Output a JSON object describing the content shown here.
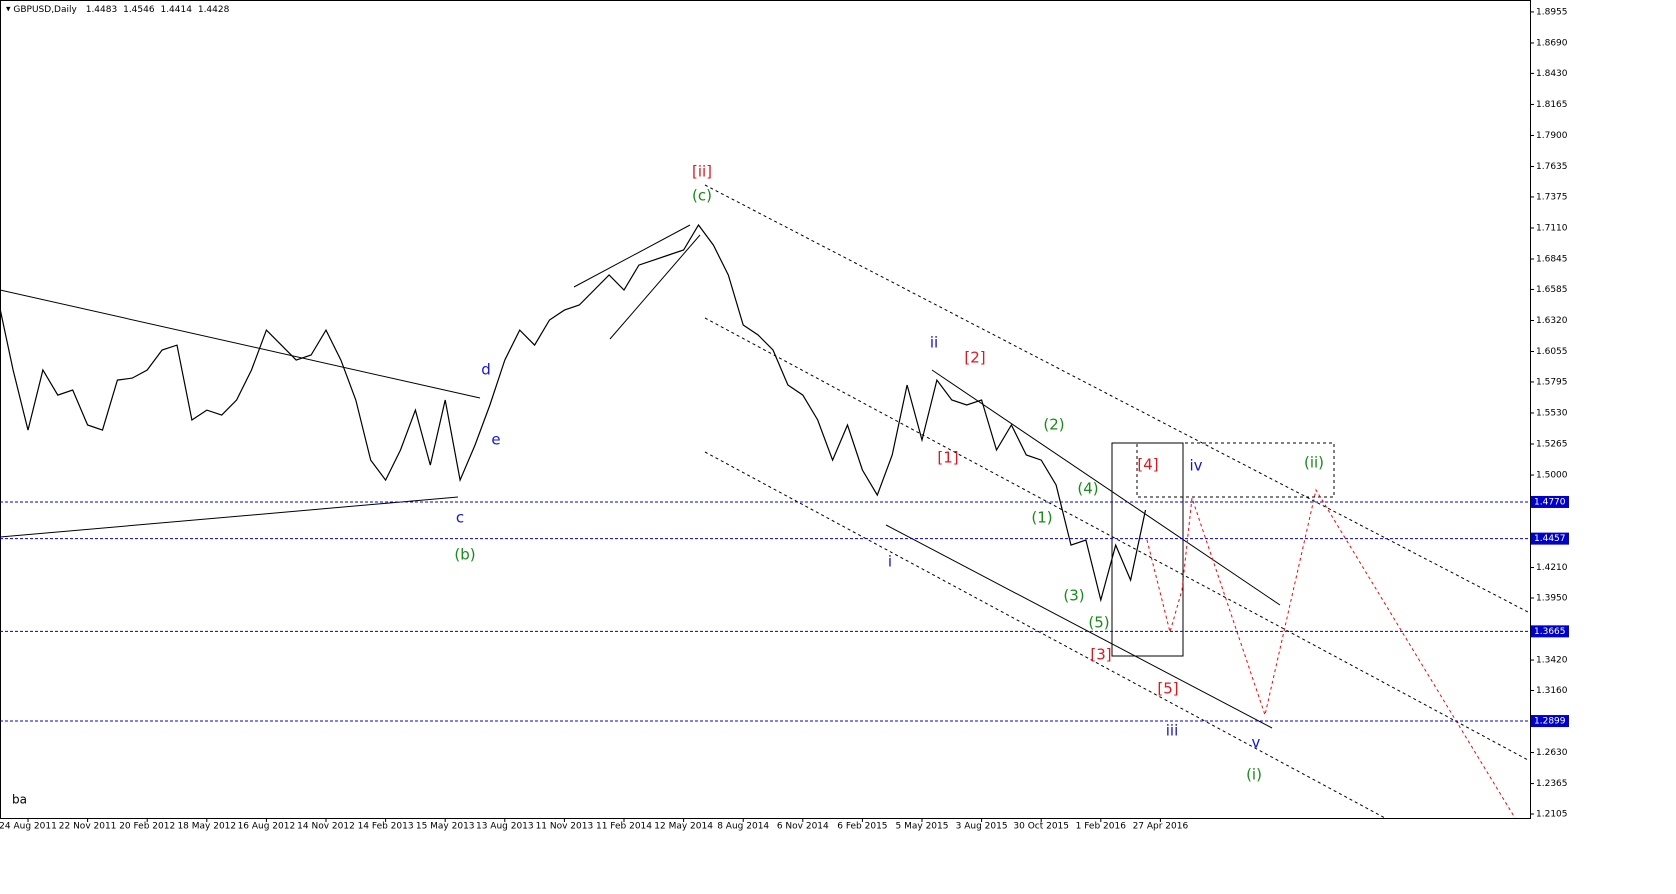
{
  "header": {
    "symbol": "GBPUSD,Daily",
    "ohlc": [
      1.4483,
      1.4546,
      1.4414,
      1.4428
    ]
  },
  "footer_text": "ba",
  "chart_data": {
    "type": "line",
    "categories": [
      null,
      null,
      "24 Aug 2011",
      null,
      null,
      null,
      "22 Nov 2011",
      null,
      null,
      null,
      "20 Feb 2012",
      null,
      null,
      null,
      "18 May 2012",
      null,
      null,
      null,
      "16 Aug 2012",
      null,
      null,
      null,
      "14 Nov 2012",
      null,
      null,
      null,
      "14 Feb 2013",
      null,
      null,
      null,
      "15 May 2013",
      null,
      null,
      null,
      "13 Aug 2013",
      null,
      null,
      null,
      "11 Nov 2013",
      null,
      null,
      null,
      "11 Feb 2014",
      null,
      null,
      null,
      "12 May 2014",
      null,
      null,
      null,
      "8 Aug 2014",
      null,
      null,
      null,
      "6 Nov 2014",
      null,
      null,
      null,
      "6 Feb 2015",
      null,
      null,
      null,
      "5 May 2015",
      null,
      null,
      null,
      "3 Aug 2015",
      null,
      null,
      null,
      "30 Oct 2015",
      null,
      null,
      null,
      "1 Feb 2016",
      null,
      null,
      null,
      "27 Apr 2016"
    ],
    "series": [
      {
        "name": "GBPUSD",
        "color": "#000000",
        "values": [
          1.6495,
          1.5897,
          1.5384,
          1.5897,
          1.5683,
          1.5726,
          1.5427,
          1.5384,
          1.5811,
          1.5828,
          1.5897,
          1.6068,
          1.611,
          1.547,
          1.5555,
          1.5512,
          1.5641,
          1.5897,
          1.6238,
          1.611,
          1.5982,
          1.6025,
          1.6238,
          1.5982,
          1.5641,
          1.5128,
          1.4957,
          1.5214,
          1.5555,
          1.5085,
          1.5641,
          1.4957,
          1.5256,
          1.5598,
          1.5982,
          1.6238,
          1.611,
          1.6324,
          1.6409,
          1.6452,
          1.658,
          1.6708,
          1.658,
          1.6793,
          1.6836,
          1.6879,
          1.6922,
          1.7135,
          1.6964,
          1.6708,
          1.6281,
          1.6196,
          1.6068,
          1.5769,
          1.5683,
          1.547,
          1.5128,
          1.5427,
          1.5043,
          1.4829,
          1.5171,
          1.5769,
          1.5299,
          1.5811,
          1.5641,
          1.5598,
          1.5641,
          1.5214,
          1.5427,
          1.5171,
          1.5128,
          1.4915,
          1.4402,
          1.4445,
          1.3933,
          1.4402,
          1.4103,
          1.4701,
          null
        ]
      }
    ],
    "ylim": [
      1.2071,
      1.9057
    ],
    "yticks": [
      1.8955,
      {
        "value": 1.869,
        "label": "1.8690"
      },
      {
        "value": 1.843,
        "label": "1.8430"
      },
      1.8165,
      {
        "value": 1.79,
        "label": "1.7900"
      },
      1.7635,
      1.7375,
      {
        "value": 1.711,
        "label": "1.7110"
      },
      1.6845,
      1.6585,
      {
        "value": 1.632,
        "label": "1.6320"
      },
      1.6055,
      1.5795,
      {
        "value": 1.553,
        "label": "1.5530"
      },
      1.5265,
      {
        "value": 1.5,
        "label": "1.5000"
      },
      {
        "value": 1.421,
        "label": "1.4210"
      },
      {
        "value": 1.395,
        "label": "1.3950"
      },
      {
        "value": 1.342,
        "label": "1.3420"
      },
      {
        "value": 1.316,
        "label": "1.3160"
      },
      {
        "value": 1.263,
        "label": "1.2630"
      },
      1.2365,
      1.2105
    ],
    "levels": {
      "color": "#0000cc",
      "values": [
        1.477,
        1.4457,
        1.3665,
        1.2899
      ],
      "value_labels": [
        "1.4770",
        "1.4457",
        "1.3665",
        "1.2899"
      ]
    },
    "annotations": [
      {
        "text": "[ii]",
        "color": "#e8141c"
      },
      {
        "text": "(c)",
        "color": "#1a8a1a"
      },
      {
        "text": "d",
        "color": "#1414dc"
      },
      {
        "text": "e",
        "color": "#1414dc"
      },
      {
        "text": "c",
        "color": "#1414dc"
      },
      {
        "text": "(b)",
        "color": "#1a8a1a"
      },
      {
        "text": "ii",
        "color": "#1414dc"
      },
      {
        "text": "[2]",
        "color": "#e8141c"
      },
      {
        "text": "[1]",
        "color": "#e8141c"
      },
      {
        "text": "i",
        "color": "#1414dc"
      },
      {
        "text": "(2)",
        "color": "#1a8a1a"
      },
      {
        "text": "(4)",
        "color": "#1a8a1a"
      },
      {
        "text": "(1)",
        "color": "#1a8a1a"
      },
      {
        "text": "(3)",
        "color": "#1a8a1a"
      },
      {
        "text": "(5)",
        "color": "#1a8a1a"
      },
      {
        "text": "[3]",
        "color": "#e8141c"
      },
      {
        "text": "[4]",
        "color": "#e8141c"
      },
      {
        "text": "iv",
        "color": "#1414dc"
      },
      {
        "text": "(ii)",
        "color": "#1a8a1a"
      },
      {
        "text": "[5]",
        "color": "#e8141c"
      },
      {
        "text": "iii",
        "color": "#1414dc"
      },
      {
        "text": "v",
        "color": "#1414dc"
      },
      {
        "text": "(i)",
        "color": "#1a8a1a"
      }
    ]
  }
}
